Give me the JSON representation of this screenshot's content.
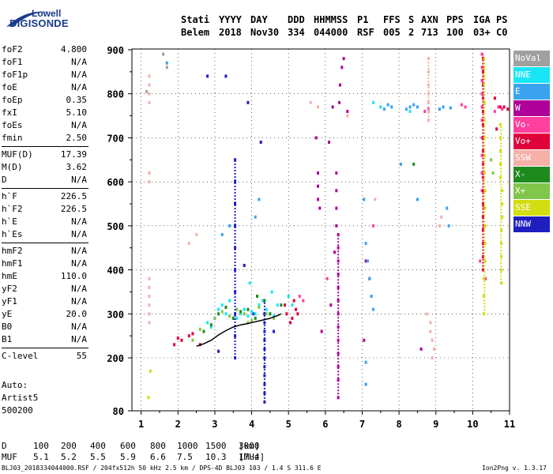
{
  "logo": {
    "brand_top": "Lowell",
    "brand_bottom": "DIGISONDE"
  },
  "header": {
    "columns": [
      {
        "label": "Stati",
        "value": "Belem"
      },
      {
        "label": "YYYY",
        "value": "2018"
      },
      {
        "label": "DAY",
        "value": "Nov30"
      },
      {
        "label": "DDD",
        "value": "334"
      },
      {
        "label": "HHMMSS",
        "value": "044000"
      },
      {
        "label": "P1",
        "value": "RSF"
      },
      {
        "label": "FFS",
        "value": "005"
      },
      {
        "label": "S",
        "value": "2"
      },
      {
        "label": "AXN",
        "value": "713"
      },
      {
        "label": "PPS",
        "value": "100"
      },
      {
        "label": "IGA",
        "value": "03+"
      },
      {
        "label": "PS",
        "value": "C0"
      }
    ]
  },
  "params": {
    "group1": [
      {
        "label": "foF2",
        "value": "4.800"
      },
      {
        "label": "foF1",
        "value": "N/A"
      },
      {
        "label": "foF1p",
        "value": "N/A"
      },
      {
        "label": "foE",
        "value": "N/A"
      },
      {
        "label": "foEp",
        "value": "0.35"
      },
      {
        "label": "fxI",
        "value": "5.10"
      },
      {
        "label": "foEs",
        "value": "N/A"
      },
      {
        "label": "fmin",
        "value": "2.50"
      }
    ],
    "group2": [
      {
        "label": "MUF(D)",
        "value": "17.39"
      },
      {
        "label": "M(D)",
        "value": "3.62"
      },
      {
        "label": "D",
        "value": "N/A"
      }
    ],
    "group3": [
      {
        "label": "h`F",
        "value": "226.5"
      },
      {
        "label": "h`F2",
        "value": "226.5"
      },
      {
        "label": "h`E",
        "value": "N/A"
      },
      {
        "label": "h`Es",
        "value": "N/A"
      }
    ],
    "group4": [
      {
        "label": "hmF2",
        "value": "N/A"
      },
      {
        "label": "hmF1",
        "value": "N/A"
      },
      {
        "label": "hmE",
        "value": "110.0"
      },
      {
        "label": "yF2",
        "value": "N/A"
      },
      {
        "label": "yF1",
        "value": "N/A"
      },
      {
        "label": "yE",
        "value": "20.0"
      },
      {
        "label": "B0",
        "value": "N/A"
      },
      {
        "label": "B1",
        "value": "N/A"
      }
    ],
    "group5": [
      {
        "label": "C-level",
        "value": "55"
      }
    ]
  },
  "auto": {
    "line1": "Auto:",
    "line2": "Artist5",
    "line3": "500200"
  },
  "legend": [
    {
      "label": "NoVal",
      "color": "#a0a0a0"
    },
    {
      "label": "NNE",
      "color": "#19e6f5"
    },
    {
      "label": "E",
      "color": "#3aa3f0"
    },
    {
      "label": "W",
      "color": "#b0009a"
    },
    {
      "label": "Vo-",
      "color": "#ff3fa0"
    },
    {
      "label": "Vo+",
      "color": "#e0003a"
    },
    {
      "label": "SSW",
      "color": "#f5b0a8"
    },
    {
      "label": "X-",
      "color": "#1e8a1e"
    },
    {
      "label": "X+",
      "color": "#7fc64a"
    },
    {
      "label": "SSE",
      "color": "#d4dc12"
    },
    {
      "label": "NNW",
      "color": "#1f1fc0"
    }
  ],
  "bottom_table": {
    "d_label": "D",
    "d_values": [
      "100",
      "200",
      "400",
      "600",
      "800",
      "1000",
      "1500",
      "3000",
      "[km]"
    ],
    "muf_label": "MUF",
    "muf_values": [
      "5.1",
      "5.2",
      "5.5",
      "5.9",
      "6.6",
      "7.5",
      "10.3",
      "17.4",
      "[MHz]"
    ]
  },
  "footer": {
    "left": "BLJ03_2018334044000.RSF / 204fx512h 50 kHz 2.5 km / DPS-4D BLJ03 103 / 1.4 S 311.6 E",
    "right": "Ion2Png v. 1.3.17"
  },
  "chart_data": {
    "type": "scatter",
    "title": "",
    "xlabel": "",
    "ylabel": "",
    "xlim": [
      0.75,
      11.0
    ],
    "ylim": [
      80,
      900
    ],
    "x_ticks": [
      "1",
      "2",
      "3",
      "4",
      "5",
      "6",
      "7",
      "8",
      "9",
      "10",
      "11"
    ],
    "y_ticks": [
      "80",
      "200",
      "300",
      "400",
      "500",
      "600",
      "700",
      "800",
      "900"
    ],
    "grid": true,
    "legend_position": "right",
    "trace": {
      "name": "",
      "color": "#000000",
      "x": [
        2.5,
        2.7,
        2.9,
        3.1,
        3.3,
        3.5,
        3.7,
        3.9,
        4.1,
        4.3,
        4.5,
        4.7,
        4.8
      ],
      "y": [
        226.5,
        232,
        240,
        252,
        262,
        270,
        275,
        278,
        282,
        286,
        290,
        296,
        300
      ]
    },
    "series": [
      {
        "direction": "NNW",
        "color": "#1f1fc0",
        "x": [
          3.55,
          3.55,
          3.55,
          3.55,
          3.55,
          3.55,
          3.55,
          3.55,
          3.55,
          3.55,
          4.35,
          4.35,
          4.35,
          4.35,
          4.35,
          4.35,
          4.35,
          4.35,
          4.35,
          4.35,
          4.35,
          3.0,
          3.3,
          3.8,
          4.05,
          4.6,
          3.9,
          3.1,
          2.8,
          4.25
        ],
        "y": [
          650,
          600,
          550,
          500,
          450,
          400,
          350,
          300,
          250,
          200,
          300,
          280,
          260,
          240,
          220,
          200,
          180,
          160,
          140,
          120,
          100,
          290,
          840,
          410,
          300,
          260,
          780,
          215,
          840,
          690
        ]
      },
      {
        "direction": "W",
        "color": "#b0009a",
        "x": [
          6.35,
          6.35,
          6.35,
          6.35,
          6.35,
          6.35,
          6.35,
          6.35,
          6.35,
          6.35,
          6.35,
          6.35,
          6.35,
          6.3,
          6.3,
          6.3,
          6.3,
          6.45,
          6.4,
          6.38,
          5.8,
          5.8,
          5.8,
          5.85,
          6.2,
          6.25,
          7.1,
          7.2,
          6.1,
          6.6,
          5.9,
          7.05,
          8.6,
          6.15,
          5.75,
          6.5
        ],
        "y": [
          480,
          450,
          420,
          390,
          360,
          330,
          300,
          270,
          240,
          210,
          180,
          150,
          110,
          620,
          580,
          540,
          500,
          860,
          820,
          780,
          620,
          590,
          560,
          540,
          770,
          440,
          420,
          380,
          690,
          760,
          260,
          240,
          220,
          320,
          700,
          880
        ]
      },
      {
        "direction": "Vo-",
        "color": "#ff3fa0",
        "x": [
          10.25,
          10.25,
          10.25,
          10.25,
          10.25,
          10.25,
          10.25,
          10.25,
          10.25,
          10.25,
          10.3,
          10.3,
          10.3,
          10.2,
          10.35,
          10.6,
          10.7,
          10.8,
          8.7,
          8.8,
          9.7,
          9.8,
          5.3,
          5.4,
          6.05,
          7.3
        ],
        "y": [
          890,
          860,
          830,
          800,
          770,
          740,
          700,
          660,
          620,
          580,
          540,
          500,
          460,
          420,
          380,
          760,
          770,
          765,
          760,
          765,
          775,
          770,
          340,
          330,
          380,
          500
        ]
      },
      {
        "direction": "Vo+",
        "color": "#e0003a",
        "x": [
          10.28,
          10.28,
          10.28,
          10.28,
          10.28,
          10.28,
          10.28,
          10.28,
          10.28,
          10.28,
          10.28,
          10.28,
          10.28,
          10.28,
          10.28,
          10.28,
          10.28,
          10.75,
          10.85,
          10.95,
          10.6,
          10.65,
          5.15,
          5.2,
          5.25,
          5.1,
          4.9,
          4.95,
          5.05,
          2.3,
          2.1,
          1.9,
          2.6,
          2.0,
          2.4
        ],
        "y": [
          880,
          850,
          820,
          790,
          760,
          730,
          700,
          670,
          640,
          610,
          580,
          550,
          520,
          490,
          460,
          430,
          400,
          770,
          770,
          765,
          790,
          720,
          330,
          310,
          300,
          290,
          320,
          300,
          280,
          250,
          240,
          230,
          230,
          245,
          255
        ]
      },
      {
        "direction": "E",
        "color": "#3aa3f0",
        "x": [
          7.5,
          7.6,
          7.7,
          7.8,
          8.2,
          8.3,
          8.4,
          8.5,
          9.1,
          9.2,
          9.4,
          7.1,
          7.15,
          7.2,
          7.25,
          7.3,
          7.05,
          8.05,
          8.5,
          9.3,
          9.35,
          7.1,
          7.1,
          3.2,
          3.4,
          4.1,
          4.2,
          1.7
        ],
        "y": [
          770,
          765,
          775,
          770,
          765,
          770,
          775,
          770,
          765,
          770,
          768,
          460,
          420,
          380,
          340,
          310,
          560,
          640,
          560,
          540,
          500,
          190,
          140,
          480,
          500,
          520,
          560,
          870
        ]
      },
      {
        "direction": "NNE",
        "color": "#19e6f5",
        "x": [
          3.1,
          3.2,
          3.3,
          3.4,
          3.6,
          3.7,
          3.8,
          3.9,
          4.0,
          4.1,
          4.2,
          4.3,
          4.4,
          4.5,
          4.6,
          4.7,
          2.8,
          2.9,
          3.0,
          5.0,
          5.1,
          4.55,
          3.95,
          7.3,
          7.5,
          8.3
        ],
        "y": [
          310,
          320,
          300,
          330,
          290,
          300,
          310,
          295,
          305,
          300,
          320,
          330,
          310,
          300,
          295,
          320,
          280,
          270,
          290,
          340,
          320,
          350,
          370,
          780,
          770,
          760
        ]
      },
      {
        "direction": "SSW",
        "color": "#f5b0a8",
        "x": [
          1.22,
          1.22,
          1.22,
          1.22,
          1.22,
          1.22,
          1.22,
          1.22,
          1.22,
          1.22,
          1.22,
          1.22,
          8.8,
          8.8,
          8.8,
          8.8,
          8.8,
          8.8,
          8.8,
          8.85,
          8.85,
          8.9,
          8.95,
          8.9,
          8.75,
          5.6,
          5.8,
          6.6,
          7.35,
          2.3,
          2.5,
          9.1,
          9.15
        ],
        "y": [
          840,
          820,
          800,
          780,
          620,
          600,
          380,
          360,
          340,
          320,
          300,
          280,
          880,
          850,
          820,
          800,
          780,
          760,
          740,
          280,
          260,
          240,
          220,
          200,
          300,
          780,
          770,
          750,
          560,
          460,
          480,
          500,
          520
        ]
      },
      {
        "direction": "X-",
        "color": "#1e8a1e",
        "x": [
          3.1,
          3.3,
          3.5,
          3.7,
          3.9,
          4.1,
          4.5,
          4.8,
          2.7,
          2.9,
          8.4,
          4.35,
          4.15
        ],
        "y": [
          300,
          315,
          290,
          305,
          310,
          290,
          300,
          320,
          260,
          275,
          640,
          330,
          340
        ]
      },
      {
        "direction": "X+",
        "color": "#7fc64a",
        "x": [
          3.0,
          3.2,
          3.4,
          3.6,
          3.8,
          4.0,
          4.2,
          4.4,
          4.6,
          2.6,
          2.4,
          3.9,
          10.5,
          10.55
        ],
        "y": [
          290,
          305,
          295,
          310,
          300,
          285,
          315,
          300,
          290,
          265,
          240,
          280,
          650,
          620
        ]
      },
      {
        "direction": "SSE",
        "color": "#d4dc12",
        "x": [
          10.3,
          10.3,
          10.3,
          10.3,
          10.32,
          10.32,
          10.32,
          10.32,
          10.32,
          10.34,
          10.34,
          10.34,
          10.34,
          10.34,
          10.3,
          10.3,
          10.3,
          10.75,
          10.75,
          10.75,
          10.75,
          10.75,
          10.8,
          10.8,
          10.8,
          10.78,
          10.78,
          10.78,
          10.78,
          10.78,
          1.2,
          1.25
        ],
        "y": [
          880,
          860,
          840,
          820,
          780,
          740,
          700,
          660,
          620,
          580,
          540,
          500,
          460,
          420,
          380,
          340,
          300,
          730,
          700,
          670,
          640,
          610,
          580,
          550,
          520,
          490,
          460,
          430,
          400,
          370,
          110,
          170
        ]
      },
      {
        "direction": "NoVal",
        "color": "#a0a0a0",
        "x": [
          1.15,
          1.6,
          1.7
        ],
        "y": [
          805,
          890,
          860
        ]
      }
    ]
  }
}
